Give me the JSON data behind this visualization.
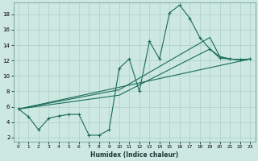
{
  "xlabel": "Humidex (Indice chaleur)",
  "xlim": [
    -0.5,
    23.5
  ],
  "ylim": [
    1.5,
    19.5
  ],
  "yticks": [
    2,
    4,
    6,
    8,
    10,
    12,
    14,
    16,
    18
  ],
  "xticks": [
    0,
    1,
    2,
    3,
    4,
    5,
    6,
    7,
    8,
    9,
    10,
    11,
    12,
    13,
    14,
    15,
    16,
    17,
    18,
    19,
    20,
    21,
    22,
    23
  ],
  "bg_color": "#cce8e0",
  "grid_color": "#aacfc8",
  "line_color": "#1a6b5a",
  "line1_x": [
    0,
    1,
    2,
    3,
    4,
    5,
    6,
    7,
    8,
    9,
    10,
    11,
    12,
    13,
    14,
    15,
    16,
    17,
    18,
    19,
    20,
    21,
    22,
    23
  ],
  "line1_y": [
    5.7,
    4.7,
    3.0,
    4.5,
    4.8,
    5.0,
    5.0,
    2.3,
    2.3,
    3.0,
    11.0,
    12.2,
    8.0,
    14.5,
    12.2,
    18.2,
    19.2,
    17.5,
    15.0,
    13.5,
    12.3,
    12.2,
    12.1,
    12.2
  ],
  "line2_x": [
    0,
    23
  ],
  "line2_y": [
    5.7,
    12.2
  ],
  "line3_x": [
    0,
    10,
    19,
    20,
    21,
    22,
    23
  ],
  "line3_y": [
    5.7,
    7.5,
    13.5,
    12.5,
    12.2,
    12.1,
    12.2
  ],
  "line4_x": [
    0,
    10,
    19,
    20,
    21,
    22,
    23
  ],
  "line4_y": [
    5.7,
    8.2,
    15.0,
    12.5,
    12.2,
    12.1,
    12.2
  ]
}
